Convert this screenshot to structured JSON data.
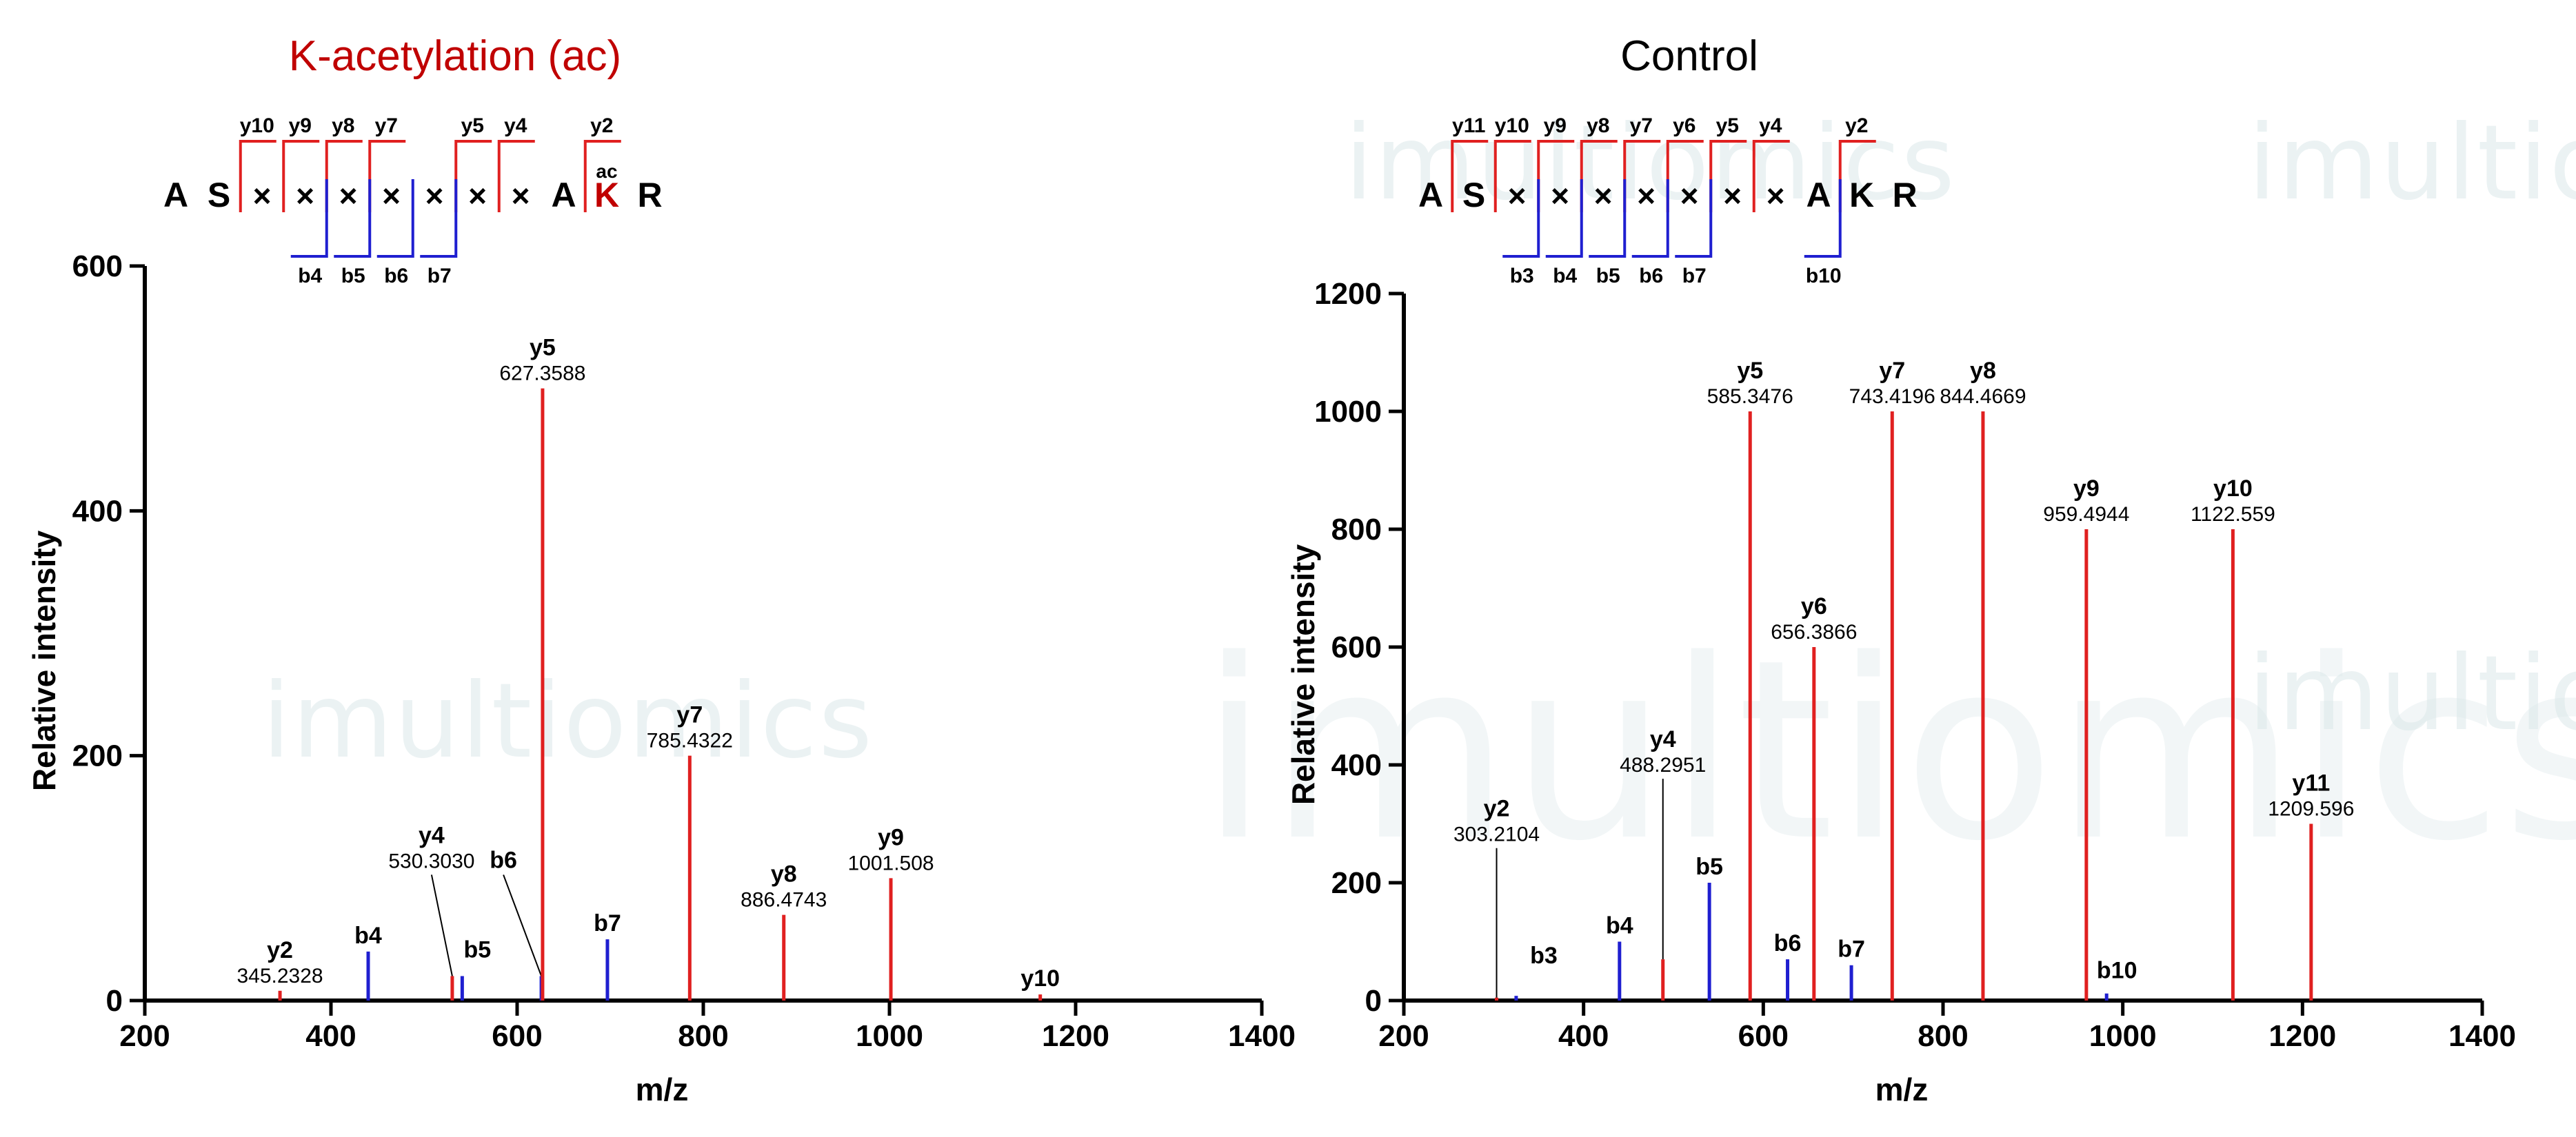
{
  "watermark": {
    "brand": "imultiomics"
  },
  "chart_data": [
    {
      "type": "bar",
      "title": "K-acetylation (ac)",
      "title_color": "#c00000",
      "xlabel": "m/z",
      "ylabel": "Relative intensity",
      "xlim": [
        200,
        1400
      ],
      "ylim": [
        0,
        600
      ],
      "xticks": [
        200,
        400,
        600,
        800,
        1000,
        1200,
        1400
      ],
      "yticks": [
        0,
        200,
        400,
        600
      ],
      "colors": {
        "y": "#e02020",
        "b": "#1f1fd0"
      },
      "peaks": [
        {
          "ion": "y2",
          "series": "y",
          "mz": 345.2328,
          "intensity": 8,
          "label": "y2",
          "mz_label": "345.2328"
        },
        {
          "ion": "b4",
          "series": "b",
          "mz": 440,
          "intensity": 40,
          "label": "b4"
        },
        {
          "ion": "y4",
          "series": "y",
          "mz": 530.303,
          "intensity": 20,
          "label": "y4",
          "mz_label": "530.3030"
        },
        {
          "ion": "b5",
          "series": "b",
          "mz": 541,
          "intensity": 20,
          "label": "b5"
        },
        {
          "ion": "b6",
          "series": "b",
          "mz": 626,
          "intensity": 20,
          "label": "b6"
        },
        {
          "ion": "y5",
          "series": "y",
          "mz": 627.3588,
          "intensity": 500,
          "label": "y5",
          "mz_label": "627.3588"
        },
        {
          "ion": "b7",
          "series": "b",
          "mz": 697,
          "intensity": 50,
          "label": "b7"
        },
        {
          "ion": "y7",
          "series": "y",
          "mz": 785.4322,
          "intensity": 200,
          "label": "y7",
          "mz_label": "785.4322"
        },
        {
          "ion": "y8",
          "series": "y",
          "mz": 886.4743,
          "intensity": 70,
          "label": "y8",
          "mz_label": "886.4743"
        },
        {
          "ion": "y9",
          "series": "y",
          "mz": 1001.508,
          "intensity": 100,
          "label": "y9",
          "mz_label": "1001.508"
        },
        {
          "ion": "y10",
          "series": "y",
          "mz": 1162,
          "intensity": 5,
          "label": "y10"
        }
      ],
      "sequence": {
        "residues": [
          "A",
          "S",
          "×",
          "×",
          "×",
          "×",
          "×",
          "×",
          "×",
          "A",
          "K",
          "R"
        ],
        "highlight_index": 10,
        "modification": "ac",
        "y_ions": [
          {
            "label": "y10",
            "after": 1
          },
          {
            "label": "y9",
            "after": 2
          },
          {
            "label": "y8",
            "after": 3
          },
          {
            "label": "y7",
            "after": 4
          },
          {
            "label": "y5",
            "after": 6
          },
          {
            "label": "y4",
            "after": 7
          },
          {
            "label": "y2",
            "after": 9
          }
        ],
        "b_ions": [
          {
            "label": "b4",
            "after": 3
          },
          {
            "label": "b5",
            "after": 4
          },
          {
            "label": "b6",
            "after": 5
          },
          {
            "label": "b7",
            "after": 6
          }
        ]
      }
    },
    {
      "type": "bar",
      "title": "Control",
      "title_color": "#000000",
      "xlabel": "m/z",
      "ylabel": "Relative intensity",
      "xlim": [
        200,
        1400
      ],
      "ylim": [
        0,
        1200
      ],
      "xticks": [
        200,
        400,
        600,
        800,
        1000,
        1200,
        1400
      ],
      "yticks": [
        0,
        200,
        400,
        600,
        800,
        1000,
        1200
      ],
      "colors": {
        "y": "#e02020",
        "b": "#1f1fd0"
      },
      "peaks": [
        {
          "ion": "y2",
          "series": "y",
          "mz": 303.2104,
          "intensity": 5,
          "label": "y2",
          "mz_label": "303.2104"
        },
        {
          "ion": "b3",
          "series": "b",
          "mz": 325,
          "intensity": 8,
          "label": "b3"
        },
        {
          "ion": "b4",
          "series": "b",
          "mz": 440,
          "intensity": 100,
          "label": "b4"
        },
        {
          "ion": "y4",
          "series": "y",
          "mz": 488.2951,
          "intensity": 70,
          "label": "y4",
          "mz_label": "488.2951"
        },
        {
          "ion": "b5",
          "series": "b",
          "mz": 540,
          "intensity": 200,
          "label": "b5"
        },
        {
          "ion": "y5",
          "series": "y",
          "mz": 585.3476,
          "intensity": 1000,
          "label": "y5",
          "mz_label": "585.3476"
        },
        {
          "ion": "b6",
          "series": "b",
          "mz": 627,
          "intensity": 70,
          "label": "b6"
        },
        {
          "ion": "y6",
          "series": "y",
          "mz": 656.3866,
          "intensity": 600,
          "label": "y6",
          "mz_label": "656.3866"
        },
        {
          "ion": "b7",
          "series": "b",
          "mz": 698,
          "intensity": 60,
          "label": "b7"
        },
        {
          "ion": "y7",
          "series": "y",
          "mz": 743.4196,
          "intensity": 1000,
          "label": "y7",
          "mz_label": "743.4196"
        },
        {
          "ion": "y8",
          "series": "y",
          "mz": 844.4669,
          "intensity": 1000,
          "label": "y8",
          "mz_label": "844.4669"
        },
        {
          "ion": "y9",
          "series": "y",
          "mz": 959.4944,
          "intensity": 800,
          "label": "y9",
          "mz_label": "959.4944"
        },
        {
          "ion": "b10",
          "series": "b",
          "mz": 982,
          "intensity": 12,
          "label": "b10"
        },
        {
          "ion": "y10",
          "series": "y",
          "mz": 1122.559,
          "intensity": 800,
          "label": "y10",
          "mz_label": "1122.559"
        },
        {
          "ion": "y11",
          "series": "y",
          "mz": 1209.596,
          "intensity": 300,
          "label": "y11",
          "mz_label": "1209.596"
        }
      ],
      "sequence": {
        "residues": [
          "A",
          "S",
          "×",
          "×",
          "×",
          "×",
          "×",
          "×",
          "×",
          "A",
          "K",
          "R"
        ],
        "highlight_index": -1,
        "modification": "",
        "y_ions": [
          {
            "label": "y11",
            "after": 0
          },
          {
            "label": "y10",
            "after": 1
          },
          {
            "label": "y9",
            "after": 2
          },
          {
            "label": "y8",
            "after": 3
          },
          {
            "label": "y7",
            "after": 4
          },
          {
            "label": "y6",
            "after": 5
          },
          {
            "label": "y5",
            "after": 6
          },
          {
            "label": "y4",
            "after": 7
          },
          {
            "label": "y2",
            "after": 9
          }
        ],
        "b_ions": [
          {
            "label": "b3",
            "after": 2
          },
          {
            "label": "b4",
            "after": 3
          },
          {
            "label": "b5",
            "after": 4
          },
          {
            "label": "b6",
            "after": 5
          },
          {
            "label": "b7",
            "after": 6
          },
          {
            "label": "b10",
            "after": 9
          }
        ]
      }
    }
  ]
}
